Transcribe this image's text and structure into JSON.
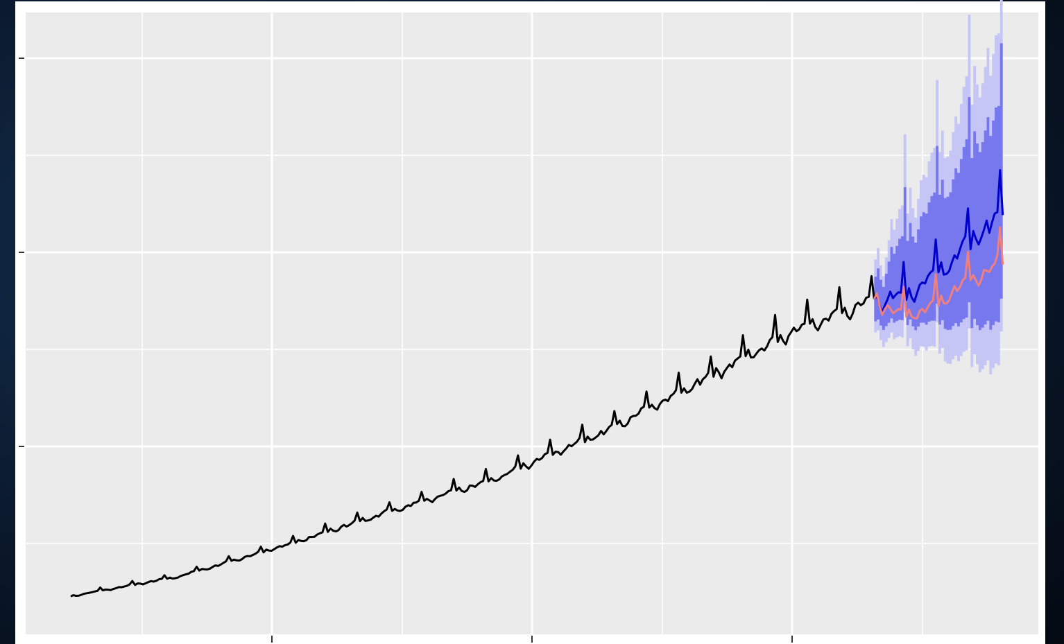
{
  "colors": {
    "panel_background": "#EBEBEB",
    "grid_color": "#FFFFFF",
    "observed_series": "#000000",
    "forecast_mean": "#0000CC",
    "forecast_alt": "#F08080",
    "interval_80": "#7777EE",
    "interval_95": "#C6C6F6",
    "page_background": "#0B1A2E"
  },
  "chart_data": {
    "type": "line",
    "title": "",
    "xlabel": "",
    "ylabel": "",
    "x_tick_labels": [],
    "y_tick_labels": [],
    "xlim": [
      0,
      360
    ],
    "ylim": [
      0,
      3.2
    ],
    "grid": true,
    "legend": "none",
    "series": [
      {
        "role": "observed",
        "color": "#000000",
        "start": 0,
        "end": 300,
        "values_description_free": true,
        "anchor_points": [
          [
            0,
            0.11
          ],
          [
            40,
            0.21
          ],
          [
            80,
            0.37
          ],
          [
            120,
            0.55
          ],
          [
            160,
            0.72
          ],
          [
            200,
            0.96
          ],
          [
            240,
            1.25
          ],
          [
            270,
            1.47
          ],
          [
            300,
            1.63
          ]
        ]
      },
      {
        "role": "forecast_mean",
        "color": "#0000CC",
        "start": 300,
        "end": 348,
        "anchor_points": [
          [
            300,
            1.63
          ],
          [
            312,
            1.65
          ],
          [
            324,
            1.78
          ],
          [
            336,
            1.92
          ],
          [
            348,
            2.08
          ]
        ]
      },
      {
        "role": "forecast_alternative",
        "color": "#F08080",
        "start": 300,
        "end": 348,
        "anchor_points": [
          [
            300,
            1.63
          ],
          [
            312,
            1.55
          ],
          [
            324,
            1.62
          ],
          [
            336,
            1.73
          ],
          [
            348,
            1.83
          ]
        ]
      }
    ],
    "interval_80": {
      "lower": [
        [
          300,
          1.52
        ],
        [
          348,
          1.5
        ]
      ],
      "upper": [
        [
          300,
          1.74
        ],
        [
          348,
          2.62
        ]
      ]
    },
    "interval_95": {
      "lower": [
        [
          300,
          1.46
        ],
        [
          348,
          1.26
        ]
      ],
      "upper": [
        [
          300,
          1.82
        ],
        [
          348,
          2.98
        ]
      ]
    }
  }
}
